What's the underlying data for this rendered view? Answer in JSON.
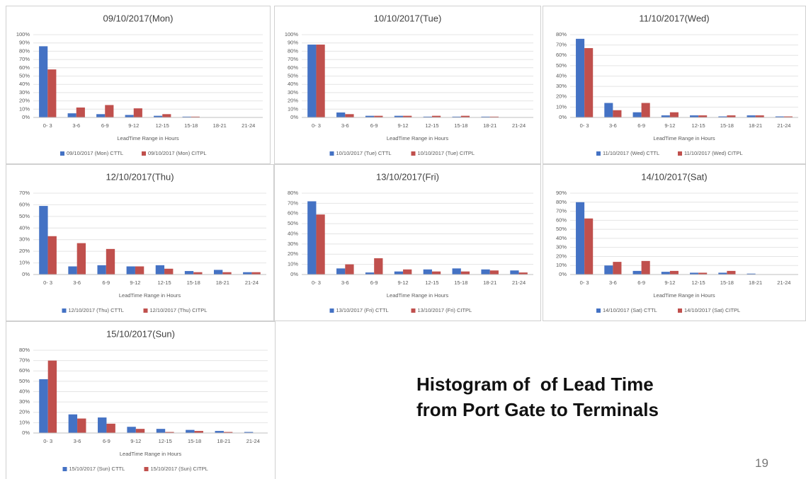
{
  "chart_data": [
    {
      "type": "bar",
      "title": "09/10/2017(Mon)",
      "x_label": "LeadTime Range in Hours",
      "categories": [
        "0- 3",
        "3-6",
        "6-9",
        "9-12",
        "12-15",
        "15-18",
        "18-21",
        "21-24"
      ],
      "series": [
        {
          "name": "09/10/2017 (Mon) CTTL",
          "color": "#4472c4",
          "values": [
            86,
            5,
            4,
            3,
            2,
            1,
            0,
            0
          ]
        },
        {
          "name": "09/10/2017 (Mon) CITPL",
          "color": "#c0504d",
          "values": [
            58,
            12,
            15,
            11,
            4,
            1,
            0,
            0
          ]
        }
      ],
      "ylim": [
        0,
        100
      ],
      "yticks": [
        {
          "value": 0,
          "label": "0%"
        },
        {
          "value": 10,
          "label": "10%"
        },
        {
          "value": 20,
          "label": "20%"
        },
        {
          "value": 30,
          "label": "30%"
        },
        {
          "value": 40,
          "label": "40%"
        },
        {
          "value": 50,
          "label": "50%"
        },
        {
          "value": 60,
          "label": "60%"
        },
        {
          "value": 70,
          "label": "70%"
        },
        {
          "value": 80,
          "label": "80%"
        },
        {
          "value": 90,
          "label": "90%"
        },
        {
          "value": 100,
          "label": "100%"
        }
      ],
      "grid": true,
      "legend": "bottom"
    },
    {
      "type": "bar",
      "title": "10/10/2017(Tue)",
      "x_label": "LeadTime Range in Hours",
      "categories": [
        "0- 3",
        "3-6",
        "6-9",
        "9-12",
        "12-15",
        "15-18",
        "18-21",
        "21-24"
      ],
      "series": [
        {
          "name": "10/10/2017 (Tue) CTTL",
          "color": "#4472c4",
          "values": [
            88,
            6,
            2,
            2,
            1,
            1,
            1,
            0
          ]
        },
        {
          "name": "10/10/2017 (Tue) CITPL",
          "color": "#c0504d",
          "values": [
            88,
            4,
            2,
            2,
            2,
            2,
            1,
            0
          ]
        }
      ],
      "ylim": [
        0,
        100
      ],
      "yticks": [
        {
          "value": 0,
          "label": "0%"
        },
        {
          "value": 10,
          "label": "10%"
        },
        {
          "value": 20,
          "label": "20%"
        },
        {
          "value": 30,
          "label": "30%"
        },
        {
          "value": 40,
          "label": "40%"
        },
        {
          "value": 50,
          "label": "50%"
        },
        {
          "value": 60,
          "label": "60%"
        },
        {
          "value": 70,
          "label": "70%"
        },
        {
          "value": 80,
          "label": "80%"
        },
        {
          "value": 90,
          "label": "90%"
        },
        {
          "value": 100,
          "label": "100%"
        }
      ],
      "grid": true,
      "legend": "bottom"
    },
    {
      "type": "bar",
      "title": "11/10/2017(Wed)",
      "x_label": "LeadTime Range in Hours",
      "categories": [
        "0- 3",
        "3-6",
        "6-9",
        "9-12",
        "12-15",
        "15-18",
        "18-21",
        "21-24"
      ],
      "series": [
        {
          "name": "11/10/2017 (Wed) CTTL",
          "color": "#4472c4",
          "values": [
            76,
            14,
            5,
            2,
            2,
            1,
            2,
            1
          ]
        },
        {
          "name": "11/10/2017 (Wed) CITPL",
          "color": "#c0504d",
          "values": [
            67,
            7,
            14,
            5,
            2,
            2,
            2,
            1
          ]
        }
      ],
      "ylim": [
        0,
        80
      ],
      "yticks": [
        {
          "value": 0,
          "label": "0%"
        },
        {
          "value": 10,
          "label": "10%"
        },
        {
          "value": 20,
          "label": "20%"
        },
        {
          "value": 30,
          "label": "30%"
        },
        {
          "value": 40,
          "label": "40%"
        },
        {
          "value": 50,
          "label": "50%"
        },
        {
          "value": 60,
          "label": "60%"
        },
        {
          "value": 70,
          "label": "70%"
        },
        {
          "value": 80,
          "label": "80%"
        }
      ],
      "grid": true,
      "legend": "bottom"
    },
    {
      "type": "bar",
      "title": "12/10/2017(Thu)",
      "x_label": "LeadTime Range in Hours",
      "categories": [
        "0- 3",
        "3-6",
        "6-9",
        "9-12",
        "12-15",
        "15-18",
        "18-21",
        "21-24"
      ],
      "series": [
        {
          "name": "12/10/2017 (Thu) CTTL",
          "color": "#4472c4",
          "values": [
            59,
            7,
            8,
            7,
            8,
            3,
            4,
            2
          ]
        },
        {
          "name": "12/10/2017 (Thu) CITPL",
          "color": "#c0504d",
          "values": [
            33,
            27,
            22,
            7,
            5,
            2,
            2,
            2
          ]
        }
      ],
      "ylim": [
        0,
        70
      ],
      "yticks": [
        {
          "value": 0,
          "label": "0%"
        },
        {
          "value": 10,
          "label": "10%"
        },
        {
          "value": 20,
          "label": "20%"
        },
        {
          "value": 30,
          "label": "30%"
        },
        {
          "value": 40,
          "label": "40%"
        },
        {
          "value": 50,
          "label": "50%"
        },
        {
          "value": 60,
          "label": "60%"
        },
        {
          "value": 70,
          "label": "70%"
        }
      ],
      "grid": true,
      "legend": "bottom"
    },
    {
      "type": "bar",
      "title": "13/10/2017(Fri)",
      "x_label": "LeadTime Range in Hours",
      "categories": [
        "0- 3",
        "3-6",
        "6-9",
        "9-12",
        "12-15",
        "15-18",
        "18-21",
        "21-24"
      ],
      "series": [
        {
          "name": "13/10/2017 (Fri) CTTL",
          "color": "#4472c4",
          "values": [
            72,
            6,
            2,
            3,
            5,
            6,
            5,
            4
          ]
        },
        {
          "name": "13/10/2017 (Fri) CITPL",
          "color": "#c0504d",
          "values": [
            59,
            10,
            16,
            5,
            3,
            3,
            4,
            2
          ]
        }
      ],
      "ylim": [
        0,
        80
      ],
      "yticks": [
        {
          "value": 0,
          "label": "0%"
        },
        {
          "value": 10,
          "label": "10%"
        },
        {
          "value": 20,
          "label": "20%"
        },
        {
          "value": 30,
          "label": "30%"
        },
        {
          "value": 40,
          "label": "40%"
        },
        {
          "value": 50,
          "label": "50%"
        },
        {
          "value": 60,
          "label": "60%"
        },
        {
          "value": 70,
          "label": "70%"
        },
        {
          "value": 80,
          "label": "80%"
        }
      ],
      "grid": true,
      "legend": "bottom"
    },
    {
      "type": "bar",
      "title": "14/10/2017(Sat)",
      "x_label": "LeadTime Range in Hours",
      "categories": [
        "0- 3",
        "3-6",
        "6-9",
        "9-12",
        "12-15",
        "15-18",
        "18-21",
        "21-24"
      ],
      "series": [
        {
          "name": "14/10/2017 (Sat) CTTL",
          "color": "#4472c4",
          "values": [
            80,
            10,
            4,
            3,
            2,
            2,
            1,
            0
          ]
        },
        {
          "name": "14/10/2017 (Sat) CITPL",
          "color": "#c0504d",
          "values": [
            62,
            14,
            15,
            4,
            2,
            4,
            0,
            0
          ]
        }
      ],
      "ylim": [
        0,
        90
      ],
      "yticks": [
        {
          "value": 0,
          "label": "0%"
        },
        {
          "value": 10,
          "label": "10%"
        },
        {
          "value": 20,
          "label": "20%"
        },
        {
          "value": 30,
          "label": "30%"
        },
        {
          "value": 40,
          "label": "40%"
        },
        {
          "value": 50,
          "label": "50%"
        },
        {
          "value": 60,
          "label": "60%"
        },
        {
          "value": 70,
          "label": "70%"
        },
        {
          "value": 80,
          "label": "80%"
        },
        {
          "value": 90,
          "label": "90%"
        }
      ],
      "grid": true,
      "legend": "bottom"
    },
    {
      "type": "bar",
      "title": "15/10/2017(Sun)",
      "x_label": "LeadTime Range in Hours",
      "categories": [
        "0- 3",
        "3-6",
        "6-9",
        "9-12",
        "12-15",
        "15-18",
        "18-21",
        "21-24"
      ],
      "series": [
        {
          "name": "15/10/2017 (Sun) CTTL",
          "color": "#4472c4",
          "values": [
            52,
            18,
            15,
            6,
            4,
            3,
            2,
            1
          ]
        },
        {
          "name": "15/10/2017 (Sun) CITPL",
          "color": "#c0504d",
          "values": [
            70,
            14,
            9,
            4,
            1,
            2,
            1,
            0
          ]
        }
      ],
      "ylim": [
        0,
        80
      ],
      "yticks": [
        {
          "value": 0,
          "label": "0%"
        },
        {
          "value": 10,
          "label": "10%"
        },
        {
          "value": 20,
          "label": "20%"
        },
        {
          "value": 30,
          "label": "30%"
        },
        {
          "value": 40,
          "label": "40%"
        },
        {
          "value": 50,
          "label": "50%"
        },
        {
          "value": 60,
          "label": "60%"
        },
        {
          "value": 70,
          "label": "70%"
        },
        {
          "value": 80,
          "label": "80%"
        }
      ],
      "grid": true,
      "legend": "bottom"
    }
  ],
  "caption": [
    "Histogram of  of Lead Time",
    "from Port Gate to Terminals"
  ],
  "page_number": "19"
}
